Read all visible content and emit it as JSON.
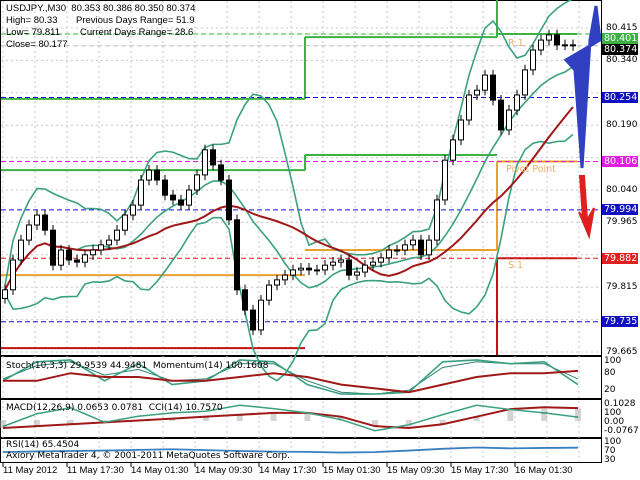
{
  "header": {
    "symbol_line": "USDJPY.,M30  80.353 80.386 80.350 80.374",
    "high": "High= 80.33",
    "prev_range": "Previous Days Range= 51.9",
    "low": "Low= 79.811",
    "cur_range": "Current Days Range= 28.6",
    "close": "Close= 80.177"
  },
  "chart_data": {
    "type": "candlestick",
    "symbol": "USDJPY.",
    "timeframe": "M30",
    "ylim": [
      79.665,
      80.415
    ],
    "grid": true,
    "y_ticks": [
      "80.415",
      "80.340",
      "80.190",
      "80.040",
      "79.965",
      "79.815",
      "79.665"
    ],
    "x_ticks": [
      "11 May 2012",
      "11 May 17:30",
      "14 May 01:30",
      "14 May 09:30",
      "14 May 17:30",
      "15 May 01:30",
      "15 May 09:30",
      "15 May 17:30",
      "16 May 01:30"
    ],
    "closes": [
      79.809,
      79.878,
      79.924,
      79.959,
      79.982,
      79.947,
      79.866,
      79.901,
      79.878,
      79.873,
      79.89,
      79.901,
      79.913,
      79.924,
      79.947,
      79.982,
      80.005,
      80.063,
      80.086,
      80.063,
      80.028,
      80.017,
      80.005,
      80.04,
      80.075,
      80.133,
      80.098,
      80.063,
      79.971,
      79.809,
      79.762,
      79.716,
      79.785,
      79.82,
      79.832,
      79.843,
      79.855,
      79.859,
      79.855,
      79.855,
      79.866,
      79.873,
      79.878,
      79.843,
      79.85,
      79.866,
      79.873,
      79.883,
      79.901,
      79.901,
      79.913,
      79.924,
      79.89,
      79.924,
      80.017,
      80.109,
      80.156,
      80.202,
      80.26,
      80.271,
      80.306,
      80.248,
      80.179,
      80.225,
      80.26,
      80.318,
      80.364,
      80.387,
      80.399,
      80.376,
      80.376,
      80.374
    ],
    "price_tags": [
      {
        "value": "80.401",
        "color": "#3cb043"
      },
      {
        "value": "80.374",
        "color": "#000000"
      },
      {
        "value": "80.254",
        "color": "#1010c0"
      },
      {
        "value": "80.106",
        "color": "#e020e0"
      },
      {
        "value": "79.994",
        "color": "#1010c0"
      },
      {
        "value": "79.882",
        "color": "#e02020"
      },
      {
        "value": "79.735",
        "color": "#1010c0"
      }
    ],
    "pivot_segments": [
      {
        "start": 0,
        "end": 38,
        "levels": [
          {
            "v": 80.251,
            "c": "#3cb043"
          },
          {
            "v": 80.086,
            "c": "#3cb043"
          },
          {
            "v": 79.843,
            "c": "#e8a030"
          },
          {
            "v": 79.674,
            "c": "#c01010"
          }
        ]
      },
      {
        "start": 38,
        "end": 62,
        "levels": [
          {
            "v": 80.394,
            "c": "#3cb043"
          },
          {
            "v": 80.121,
            "c": "#3cb043"
          },
          {
            "v": 79.901,
            "c": "#e8a030"
          }
        ]
      },
      {
        "start": 62,
        "end": 72,
        "levels": [
          {
            "v": 80.401,
            "c": "#3cb043"
          },
          {
            "v": 80.106,
            "c": "#e8a030"
          },
          {
            "v": 79.882,
            "c": "#c01010"
          }
        ]
      }
    ],
    "pivot_labels": {
      "r1": "R 1",
      "pp": "Pivot Point",
      "s1": "S 1"
    },
    "indicators": {
      "stoch_label": "Stoch(10,3,3) 29.9539 44.9481  Momentum(14) 100.1608",
      "stoch_main": [
        40,
        90,
        95,
        40,
        85,
        30,
        40,
        95,
        90,
        30,
        5,
        5,
        10,
        90,
        95,
        85,
        90,
        30
      ],
      "stoch_signal": [
        45,
        80,
        90,
        55,
        70,
        40,
        45,
        85,
        85,
        40,
        10,
        5,
        15,
        75,
        90,
        85,
        85,
        45
      ],
      "momentum": [
        99.9,
        99.9,
        100.1,
        100.0,
        100.0,
        99.9,
        99.9,
        100.0,
        100.1,
        100.0,
        99.8,
        99.7,
        99.6,
        99.8,
        100.0,
        100.1,
        100.1,
        100.16
      ],
      "stoch_scale": [
        "100",
        "80",
        "20"
      ],
      "macd_label": "MACD(12,26,9) 0.0653 0.0781  CCI(14) 10.7570",
      "macd": [
        -0.04,
        -0.03,
        -0.02,
        -0.01,
        0.0,
        0.01,
        0.02,
        0.03,
        0.04,
        0.04,
        0.02,
        -0.03,
        -0.04,
        -0.02,
        0.02,
        0.06,
        0.07,
        0.065
      ],
      "cci": [
        -100,
        50,
        120,
        -50,
        20,
        60,
        80,
        150,
        110,
        60,
        -20,
        -150,
        -80,
        40,
        150,
        100,
        60,
        10
      ],
      "macd_scale": [
        "0.1028",
        "100",
        "0.00",
        "-0.0767"
      ],
      "rsi_label": "RSI(14) 65.4504",
      "rsi": [
        45,
        48,
        50,
        52,
        55,
        58,
        54,
        50,
        47,
        46,
        43,
        45,
        52,
        60,
        66,
        62,
        64,
        65
      ],
      "rsi_scale": [
        "100",
        "70",
        "30"
      ]
    }
  },
  "footer": {
    "copyright": "Axiory MetaTrader 4, © 2001-2011 MetaQuotes Software Corp."
  },
  "colors": {
    "bull_arrow": "#3040c0",
    "bear_arrow": "#e02020",
    "ma_fast": "#3aa080",
    "ma_slow": "#a01818",
    "rsi": "#3a80c0"
  }
}
